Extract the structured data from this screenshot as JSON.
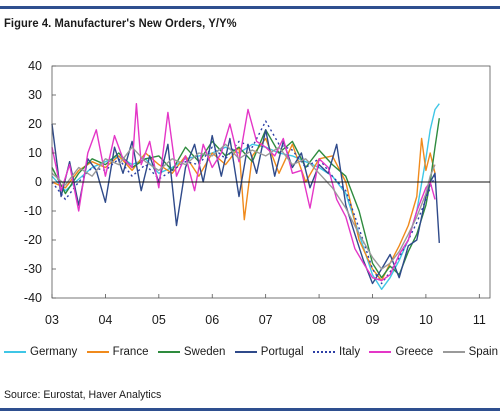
{
  "header": {
    "title": "Figure 4. Manufacturer's New Orders, Y/Y%"
  },
  "footer": {
    "source": "Source: Eurostat, Haver Analytics"
  },
  "chart_data": {
    "type": "line",
    "title": "Figure 4. Manufacturer's New Orders, Y/Y%",
    "xlabel": "",
    "ylabel": "",
    "xlim": [
      2003,
      2011.2
    ],
    "ylim": [
      -40,
      40
    ],
    "x_ticks": [
      2003,
      2004,
      2005,
      2006,
      2007,
      2008,
      2009,
      2010,
      2011
    ],
    "x_tick_labels": [
      "03",
      "04",
      "05",
      "06",
      "07",
      "08",
      "09",
      "10",
      "11"
    ],
    "y_ticks": [
      -40,
      -30,
      -20,
      -10,
      0,
      10,
      20,
      30,
      40
    ],
    "y_tick_labels": [
      "-40",
      "-30",
      "-20",
      "-10",
      "0",
      "10",
      "20",
      "30",
      "40"
    ],
    "grid": false,
    "legend_position": "bottom",
    "series": [
      {
        "name": "Germany",
        "color": "#3fc6e6",
        "dash": "solid",
        "x": [
          2003.0,
          2003.25,
          2003.5,
          2003.75,
          2004.0,
          2004.25,
          2004.5,
          2004.75,
          2005.0,
          2005.25,
          2005.5,
          2005.75,
          2006.0,
          2006.25,
          2006.5,
          2006.75,
          2007.0,
          2007.25,
          2007.5,
          2007.75,
          2008.0,
          2008.25,
          2008.5,
          2008.75,
          2009.0,
          2009.17,
          2009.33,
          2009.5,
          2009.67,
          2009.83,
          2010.0,
          2010.08,
          2010.17,
          2010.25
        ],
        "y": [
          2,
          -3,
          1,
          5,
          7,
          9,
          6,
          8,
          3,
          5,
          8,
          9,
          10,
          12,
          10,
          13,
          12,
          10,
          9,
          7,
          5,
          2,
          -4,
          -18,
          -32,
          -37,
          -33,
          -27,
          -20,
          -10,
          8,
          18,
          25,
          27
        ]
      },
      {
        "name": "France",
        "color": "#f08a1c",
        "dash": "solid",
        "x": [
          2003.0,
          2003.25,
          2003.5,
          2003.75,
          2004.0,
          2004.25,
          2004.5,
          2004.75,
          2005.0,
          2005.25,
          2005.5,
          2005.75,
          2006.0,
          2006.25,
          2006.5,
          2006.6,
          2006.75,
          2007.0,
          2007.25,
          2007.5,
          2007.75,
          2008.0,
          2008.25,
          2008.5,
          2008.75,
          2009.0,
          2009.17,
          2009.33,
          2009.5,
          2009.67,
          2009.83,
          2009.92,
          2010.0,
          2010.08,
          2010.17
        ],
        "y": [
          0,
          -2,
          4,
          7,
          5,
          9,
          4,
          10,
          6,
          3,
          9,
          2,
          10,
          6,
          12,
          -13,
          9,
          15,
          3,
          13,
          0,
          8,
          9,
          0,
          -20,
          -30,
          -34,
          -28,
          -22,
          -15,
          -5,
          15,
          4,
          10,
          3
        ]
      },
      {
        "name": "Sweden",
        "color": "#2e8b3e",
        "dash": "solid",
        "x": [
          2003.0,
          2003.25,
          2003.5,
          2003.75,
          2004.0,
          2004.25,
          2004.5,
          2004.75,
          2005.0,
          2005.25,
          2005.5,
          2005.75,
          2006.0,
          2006.25,
          2006.5,
          2006.75,
          2007.0,
          2007.25,
          2007.5,
          2007.75,
          2008.0,
          2008.25,
          2008.5,
          2008.75,
          2009.0,
          2009.17,
          2009.33,
          2009.5,
          2009.67,
          2009.83,
          2010.0,
          2010.08,
          2010.17,
          2010.25
        ],
        "y": [
          5,
          -4,
          3,
          8,
          6,
          10,
          5,
          8,
          9,
          4,
          12,
          7,
          14,
          9,
          12,
          7,
          18,
          10,
          14,
          5,
          11,
          6,
          2,
          -10,
          -28,
          -33,
          -29,
          -32,
          -24,
          -18,
          -8,
          0,
          12,
          22
        ]
      },
      {
        "name": "Portugal",
        "color": "#2f4a8a",
        "dash": "solid",
        "x": [
          2003.0,
          2003.17,
          2003.33,
          2003.5,
          2003.67,
          2003.83,
          2004.0,
          2004.17,
          2004.33,
          2004.5,
          2004.67,
          2004.83,
          2005.0,
          2005.17,
          2005.33,
          2005.5,
          2005.67,
          2005.83,
          2006.0,
          2006.17,
          2006.33,
          2006.5,
          2006.67,
          2006.83,
          2007.0,
          2007.17,
          2007.33,
          2007.5,
          2007.67,
          2007.83,
          2008.0,
          2008.17,
          2008.33,
          2008.5,
          2008.67,
          2008.83,
          2009.0,
          2009.17,
          2009.33,
          2009.5,
          2009.67,
          2009.83,
          2010.0,
          2010.08,
          2010.17,
          2010.25
        ],
        "y": [
          20,
          -5,
          7,
          -8,
          8,
          4,
          -7,
          12,
          3,
          14,
          -3,
          9,
          0,
          13,
          -15,
          5,
          13,
          0,
          16,
          2,
          15,
          -5,
          13,
          3,
          18,
          2,
          14,
          5,
          10,
          -2,
          6,
          3,
          13,
          -8,
          -18,
          -27,
          -35,
          -30,
          -25,
          -33,
          -22,
          -20,
          -5,
          0,
          3,
          -21
        ]
      },
      {
        "name": "Italy",
        "color": "#2d3fa6",
        "dash": "dashed",
        "x": [
          2003.0,
          2003.25,
          2003.5,
          2003.75,
          2004.0,
          2004.25,
          2004.5,
          2004.75,
          2005.0,
          2005.25,
          2005.5,
          2005.75,
          2006.0,
          2006.25,
          2006.5,
          2006.75,
          2007.0,
          2007.25,
          2007.5,
          2007.75,
          2008.0,
          2008.25,
          2008.5,
          2008.75,
          2009.0,
          2009.17,
          2009.33,
          2009.5,
          2009.67,
          2009.83,
          2010.0,
          2010.08,
          2010.17
        ],
        "y": [
          0,
          -6,
          0,
          5,
          4,
          8,
          2,
          6,
          1,
          4,
          7,
          6,
          12,
          8,
          14,
          12,
          21,
          13,
          11,
          5,
          8,
          2,
          -3,
          -16,
          -30,
          -35,
          -31,
          -26,
          -20,
          -14,
          -6,
          -2,
          2
        ]
      },
      {
        "name": "Greece",
        "color": "#e436c7",
        "dash": "solid",
        "x": [
          2003.0,
          2003.17,
          2003.33,
          2003.5,
          2003.67,
          2003.83,
          2004.0,
          2004.17,
          2004.33,
          2004.5,
          2004.58,
          2004.67,
          2004.83,
          2005.0,
          2005.17,
          2005.33,
          2005.5,
          2005.67,
          2005.83,
          2006.0,
          2006.17,
          2006.33,
          2006.5,
          2006.67,
          2006.83,
          2007.0,
          2007.17,
          2007.33,
          2007.5,
          2007.67,
          2007.83,
          2008.0,
          2008.17,
          2008.33,
          2008.5,
          2008.67,
          2008.83,
          2009.0,
          2009.17,
          2009.33,
          2009.5,
          2009.67,
          2009.83,
          2010.0,
          2010.08,
          2010.17
        ],
        "y": [
          12,
          -3,
          6,
          -10,
          10,
          18,
          2,
          16,
          8,
          5,
          27,
          6,
          14,
          -2,
          24,
          2,
          9,
          -3,
          13,
          5,
          10,
          20,
          7,
          25,
          14,
          12,
          9,
          15,
          3,
          4,
          -9,
          8,
          5,
          -6,
          -12,
          -23,
          -28,
          -33,
          -34,
          -32,
          -25,
          -20,
          -10,
          -2,
          0,
          -6
        ]
      },
      {
        "name": "Spain",
        "color": "#9a9a9a",
        "dash": "solid",
        "x": [
          2003.0,
          2003.25,
          2003.5,
          2003.75,
          2004.0,
          2004.25,
          2004.5,
          2004.75,
          2005.0,
          2005.25,
          2005.5,
          2005.75,
          2006.0,
          2006.25,
          2006.5,
          2006.75,
          2007.0,
          2007.25,
          2007.5,
          2007.75,
          2008.0,
          2008.25,
          2008.5,
          2008.75,
          2009.0,
          2009.17,
          2009.33,
          2009.5,
          2009.67,
          2009.83,
          2010.0,
          2010.08,
          2010.17
        ],
        "y": [
          3,
          -1,
          5,
          2,
          8,
          6,
          12,
          7,
          4,
          8,
          6,
          10,
          9,
          13,
          8,
          11,
          9,
          12,
          6,
          8,
          3,
          -2,
          -9,
          -18,
          -26,
          -30,
          -28,
          -24,
          -18,
          -12,
          -4,
          2,
          6
        ]
      }
    ]
  }
}
